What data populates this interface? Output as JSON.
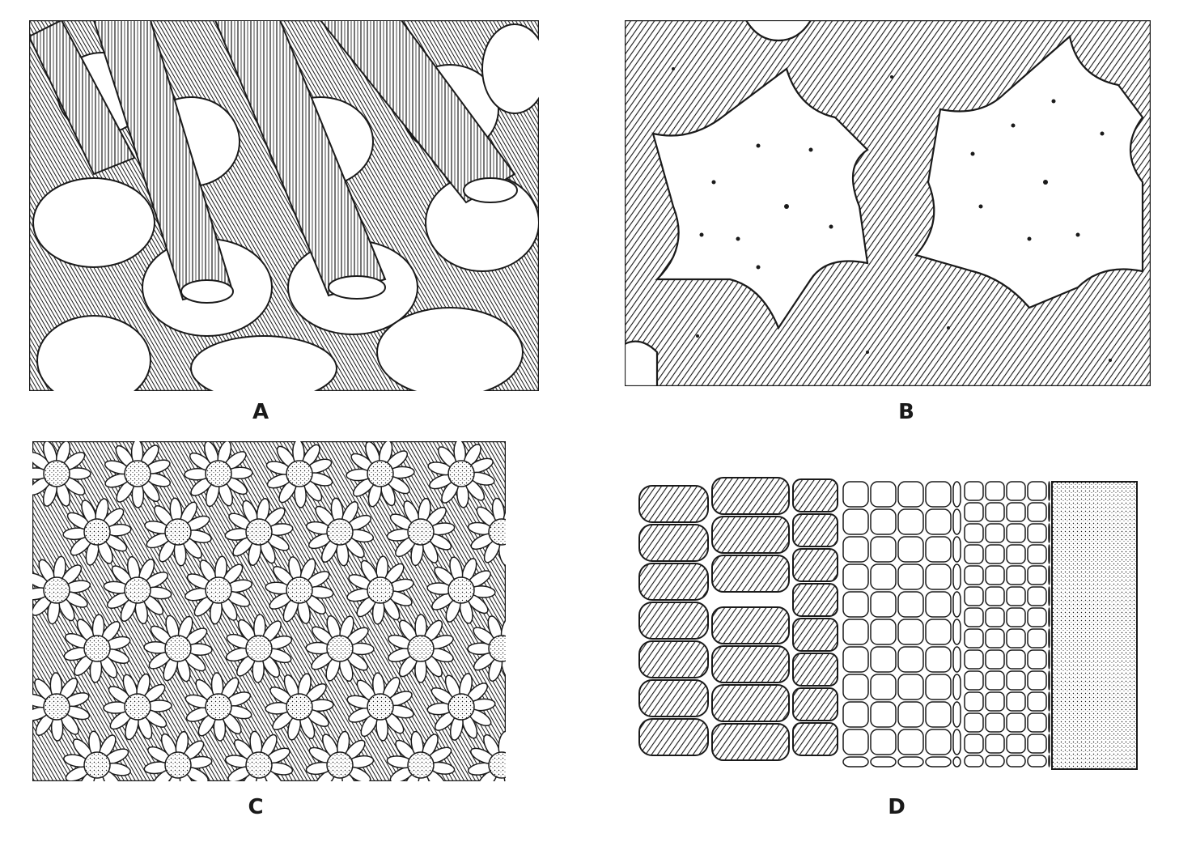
{
  "figure": {
    "panels": [
      {
        "id": "A",
        "label": "A",
        "subject": "rod-clusters-over-disc-plates"
      },
      {
        "id": "B",
        "label": "B",
        "subject": "six-pointed-star-plates"
      },
      {
        "id": "C",
        "label": "C",
        "subject": "rosette-clusters"
      },
      {
        "id": "D",
        "label": "D",
        "subject": "cell-grid-segment"
      }
    ]
  },
  "palette": {
    "ink": "#1a1a1a",
    "paper": "#ffffff",
    "shade": "#555555"
  }
}
